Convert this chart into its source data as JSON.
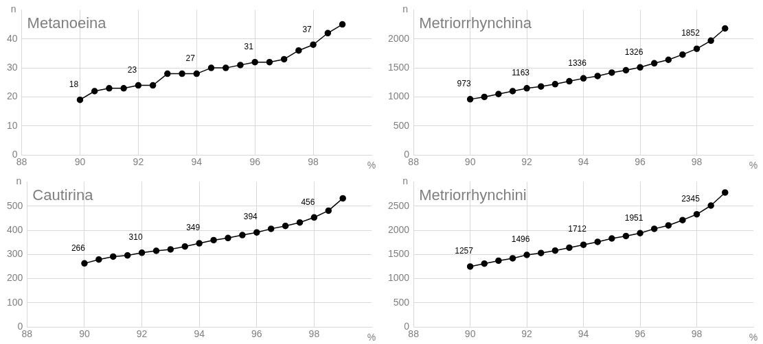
{
  "chart_data": [
    {
      "type": "line",
      "title": "Metanoeina",
      "xlabel": "%",
      "ylabel": "n",
      "x": [
        90,
        90.5,
        91,
        91.5,
        92,
        92.5,
        93,
        93.5,
        94,
        94.5,
        95,
        95.5,
        96,
        96.5,
        97,
        97.5,
        98,
        98.5,
        99
      ],
      "series": [
        {
          "color": "#000000",
          "values": [
            19,
            22,
            23,
            23,
            24,
            24,
            28,
            28,
            28,
            30,
            30,
            31,
            32,
            32,
            33,
            36,
            38,
            42,
            45
          ]
        }
      ],
      "xlim": [
        88,
        100
      ],
      "xticks": [
        88,
        90,
        92,
        94,
        96,
        98
      ],
      "ylim": [
        0,
        50
      ],
      "yticks": [
        0,
        10,
        20,
        30,
        40
      ],
      "grid": true,
      "legend": false,
      "marker": "circle",
      "line_style": "solid",
      "annotations": [
        "18",
        "23",
        "27",
        "31",
        "37"
      ]
    },
    {
      "type": "line",
      "title": "Metriorrhynchina",
      "xlabel": "%",
      "ylabel": "n",
      "x": [
        90,
        90.5,
        91,
        91.5,
        92,
        92.5,
        93,
        93.5,
        94,
        94.5,
        95,
        95.5,
        96,
        96.5,
        97,
        97.5,
        98,
        98.5,
        99
      ],
      "series": [
        {
          "color": "#000000",
          "values": [
            960,
            1000,
            1050,
            1100,
            1150,
            1180,
            1220,
            1270,
            1320,
            1360,
            1420,
            1460,
            1510,
            1580,
            1640,
            1730,
            1830,
            1970,
            2180
          ]
        }
      ],
      "xlim": [
        88,
        100
      ],
      "xticks": [
        88,
        90,
        92,
        94,
        96,
        98
      ],
      "ylim": [
        0,
        2500
      ],
      "yticks": [
        0,
        500,
        1000,
        1500,
        2000
      ],
      "grid": true,
      "legend": false,
      "marker": "circle",
      "line_style": "solid",
      "annotations": [
        "973",
        "1163",
        "1336",
        "1326",
        "1852"
      ]
    },
    {
      "type": "line",
      "title": "Cautirina",
      "xlabel": "%",
      "ylabel": "n",
      "x": [
        90,
        90.5,
        91,
        91.5,
        92,
        92.5,
        93,
        93.5,
        94,
        94.5,
        95,
        95.5,
        96,
        96.5,
        97,
        97.5,
        98,
        98.5,
        99
      ],
      "series": [
        {
          "color": "#000000",
          "values": [
            263,
            279,
            291,
            296,
            307,
            315,
            321,
            333,
            346,
            359,
            368,
            380,
            391,
            406,
            418,
            432,
            453,
            481,
            532
          ]
        }
      ],
      "xlim": [
        88,
        100
      ],
      "xticks": [
        88,
        90,
        92,
        94,
        96,
        98
      ],
      "ylim": [
        0,
        600
      ],
      "yticks": [
        0,
        100,
        200,
        300,
        400,
        500
      ],
      "grid": true,
      "legend": false,
      "marker": "circle",
      "line_style": "solid",
      "annotations": [
        "266",
        "310",
        "349",
        "394",
        "456"
      ]
    },
    {
      "type": "line",
      "title": "Metriorrhynchini",
      "xlabel": "%",
      "ylabel": "n",
      "x": [
        90,
        90.5,
        91,
        91.5,
        92,
        92.5,
        93,
        93.5,
        94,
        94.5,
        95,
        95.5,
        96,
        96.5,
        97,
        97.5,
        98,
        98.5,
        99
      ],
      "series": [
        {
          "color": "#000000",
          "values": [
            1250,
            1310,
            1370,
            1420,
            1490,
            1530,
            1580,
            1640,
            1700,
            1760,
            1830,
            1880,
            1940,
            2030,
            2100,
            2210,
            2330,
            2510,
            2780
          ]
        }
      ],
      "xlim": [
        88,
        100
      ],
      "xticks": [
        88,
        90,
        92,
        94,
        96,
        98
      ],
      "ylim": [
        0,
        3000
      ],
      "yticks": [
        0,
        500,
        1000,
        1500,
        2000,
        2500
      ],
      "grid": true,
      "legend": false,
      "marker": "circle",
      "line_style": "solid",
      "annotations": [
        "1257",
        "1496",
        "1712",
        "1951",
        "2345"
      ]
    }
  ]
}
